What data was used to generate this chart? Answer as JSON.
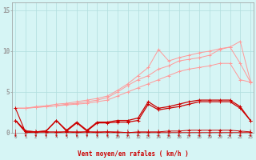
{
  "x": [
    0,
    1,
    2,
    3,
    4,
    5,
    6,
    7,
    8,
    9,
    10,
    11,
    12,
    13,
    14,
    15,
    16,
    17,
    18,
    19,
    20,
    21,
    22,
    23
  ],
  "light1_y": [
    3.0,
    3.0,
    3.1,
    3.2,
    3.3,
    3.4,
    3.5,
    3.6,
    3.8,
    4.0,
    4.5,
    5.0,
    5.5,
    6.0,
    6.5,
    7.0,
    7.5,
    7.8,
    8.0,
    8.2,
    8.5,
    8.5,
    6.5,
    6.2
  ],
  "light2_y": [
    3.0,
    3.0,
    3.1,
    3.2,
    3.3,
    3.5,
    3.6,
    3.8,
    4.0,
    4.3,
    5.0,
    5.8,
    6.5,
    7.0,
    7.8,
    8.2,
    8.8,
    9.0,
    9.2,
    9.5,
    10.2,
    10.5,
    8.5,
    6.2
  ],
  "light3_y": [
    3.0,
    3.0,
    3.2,
    3.3,
    3.5,
    3.6,
    3.8,
    4.0,
    4.2,
    4.5,
    5.2,
    6.0,
    7.0,
    8.0,
    10.2,
    8.8,
    9.2,
    9.5,
    9.8,
    10.0,
    10.3,
    10.5,
    11.2,
    6.3
  ],
  "dark1_y": [
    1.5,
    0.2,
    0.1,
    0.2,
    1.5,
    0.3,
    1.3,
    0.3,
    1.3,
    1.3,
    1.5,
    1.5,
    1.8,
    3.8,
    3.0,
    3.2,
    3.5,
    3.8,
    4.0,
    4.0,
    4.0,
    4.0,
    3.2,
    1.5
  ],
  "dark2_y": [
    1.5,
    0.2,
    0.1,
    0.2,
    1.5,
    0.2,
    1.2,
    0.2,
    1.2,
    1.2,
    1.3,
    1.3,
    1.5,
    3.5,
    2.8,
    3.0,
    3.2,
    3.5,
    3.8,
    3.8,
    3.8,
    3.8,
    3.0,
    1.5
  ],
  "dark3_y": [
    1.5,
    0.0,
    0.0,
    0.0,
    0.0,
    0.1,
    0.0,
    0.1,
    0.0,
    0.1,
    0.1,
    0.0,
    0.1,
    0.1,
    0.1,
    0.2,
    0.2,
    0.3,
    0.3,
    0.3,
    0.3,
    0.3,
    0.2,
    0.1
  ],
  "dark4_y": [
    3.0,
    0.0,
    0.1,
    0.1,
    0.1,
    0.1,
    0.1,
    0.1,
    0.1,
    0.1,
    0.0,
    0.0,
    0.0,
    0.0,
    0.0,
    0.0,
    0.0,
    0.0,
    0.0,
    0.0,
    0.0,
    0.0,
    0.0,
    0.0
  ],
  "xlabel": "Vent moyen/en rafales ( km/h )",
  "ylim": [
    0,
    16
  ],
  "xlim": [
    -0.3,
    23.3
  ],
  "yticks": [
    0,
    5,
    10,
    15
  ],
  "xticks": [
    0,
    1,
    2,
    3,
    4,
    5,
    6,
    7,
    8,
    9,
    10,
    11,
    12,
    13,
    14,
    15,
    16,
    17,
    18,
    19,
    20,
    21,
    22,
    23
  ],
  "bg_color": "#d6f5f5",
  "grid_color": "#b0dede",
  "line_dark": "#cc0000",
  "line_light": "#ff9999"
}
